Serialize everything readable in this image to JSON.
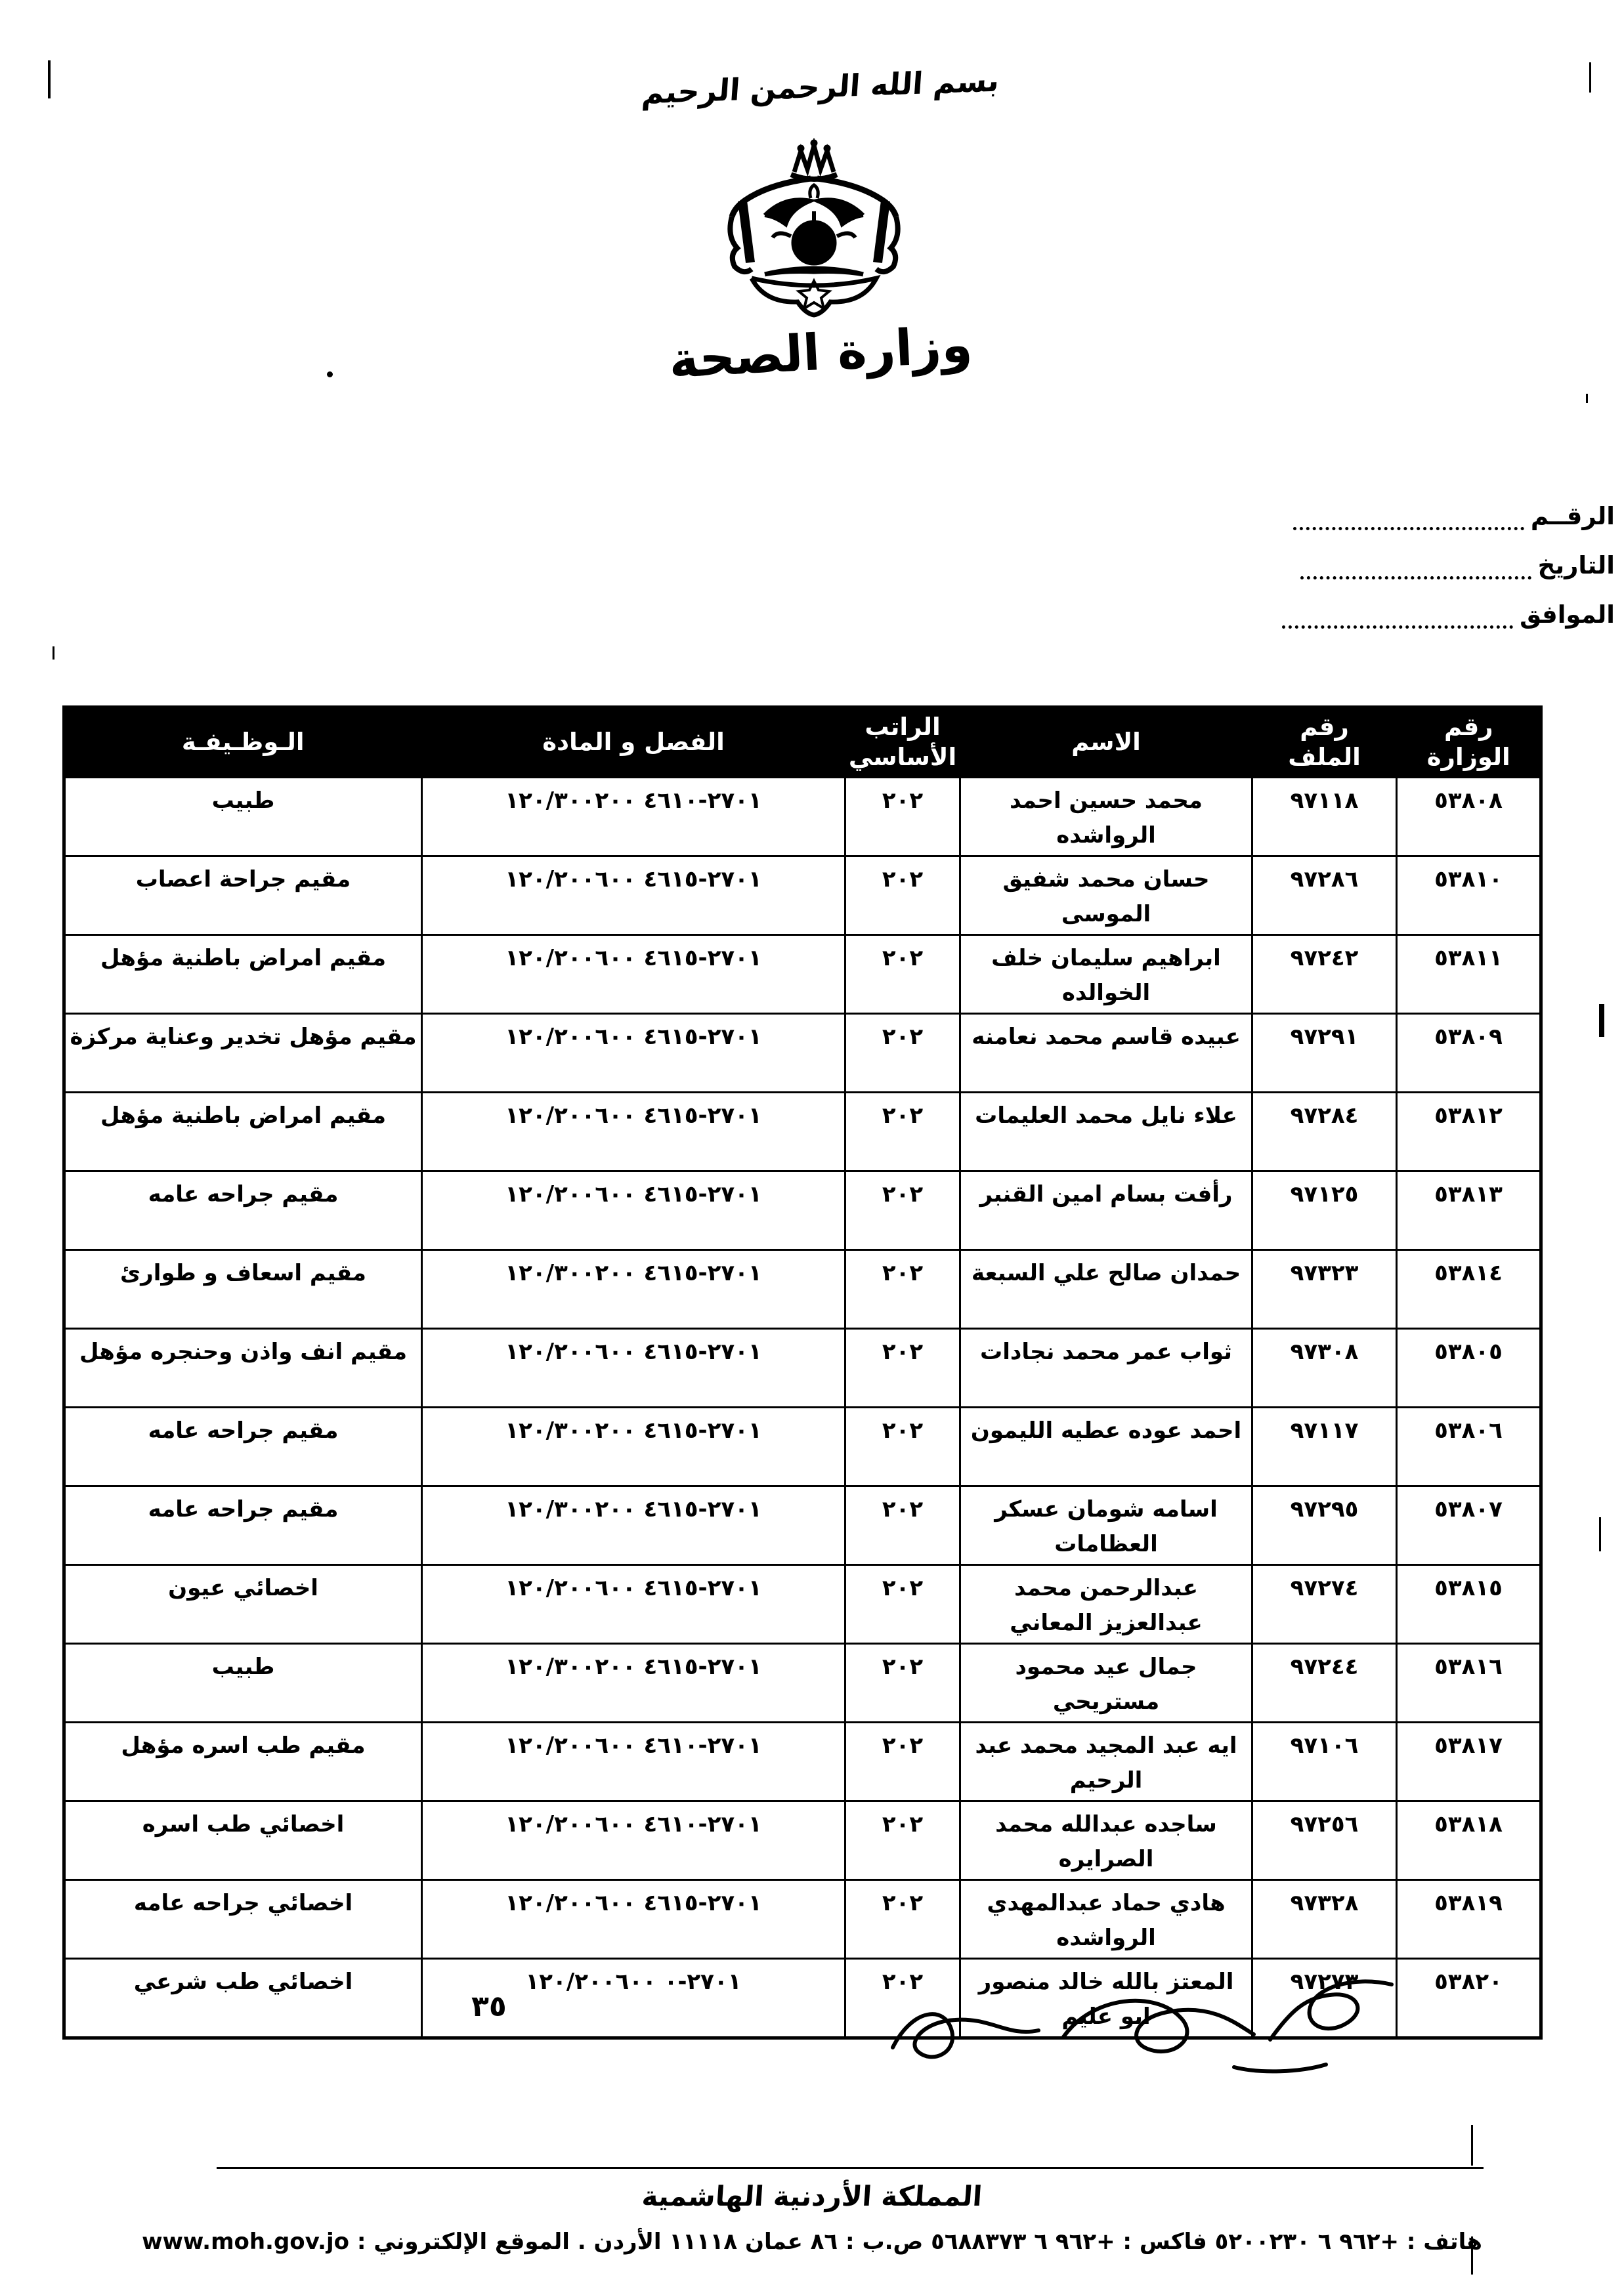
{
  "header": {
    "bismillah": "بسم الله الرحمن الرحيم",
    "ministry": "وزارة الصحة"
  },
  "meta": {
    "number_label": "الرقــم",
    "date_label": "التاريخ",
    "agreed_label": "الموافق"
  },
  "table": {
    "headers": {
      "ministry_number": "رقم\nالوزارة",
      "file_number": "رقم\nالملف",
      "name": "الاسم",
      "basic_salary": "الراتب\nالأساسي",
      "chapter_article": "الفصل و المادة",
      "job_title": "الـوظـيفـة"
    },
    "rows": [
      {
        "serial": "٥٣٨٠٨",
        "file": "٩٧١١٨",
        "name": "محمد حسين احمد الرواشده",
        "salary": "٢٠٢",
        "code": "١٢٠/٣٠٠٢٠٠  ٤٦١٠-٢٧٠١",
        "title": "طبيب"
      },
      {
        "serial": "٥٣٨١٠",
        "file": "٩٧٢٨٦",
        "name": "حسان محمد شفيق الموسى",
        "salary": "٢٠٢",
        "code": "١٢٠/٢٠٠٦٠٠  ٤٦١٥-٢٧٠١",
        "title": "مقيم جراحة اعصاب"
      },
      {
        "serial": "٥٣٨١١",
        "file": "٩٧٢٤٢",
        "name": "ابراهيم سليمان خلف الخوالده",
        "salary": "٢٠٢",
        "code": "١٢٠/٢٠٠٦٠٠  ٤٦١٥-٢٧٠١",
        "title": "مقيم امراض باطنية مؤهل"
      },
      {
        "serial": "٥٣٨٠٩",
        "file": "٩٧٢٩١",
        "name": "عبيده قاسم محمد نعامنه",
        "salary": "٢٠٢",
        "code": "١٢٠/٢٠٠٦٠٠  ٤٦١٥-٢٧٠١",
        "title": "مقيم مؤهل تخدير وعناية مركزة"
      },
      {
        "serial": "٥٣٨١٢",
        "file": "٩٧٢٨٤",
        "name": "علاء نايل محمد العليمات",
        "salary": "٢٠٢",
        "code": "١٢٠/٢٠٠٦٠٠  ٤٦١٥-٢٧٠١",
        "title": "مقيم امراض باطنية مؤهل"
      },
      {
        "serial": "٥٣٨١٣",
        "file": "٩٧١٢٥",
        "name": "رأفت بسام امين القنبر",
        "salary": "٢٠٢",
        "code": "١٢٠/٢٠٠٦٠٠  ٤٦١٥-٢٧٠١",
        "title": "مقيم جراحه عامه"
      },
      {
        "serial": "٥٣٨١٤",
        "file": "٩٧٣٢٣",
        "name": "حمدان صالح علي السبعة",
        "salary": "٢٠٢",
        "code": "١٢٠/٣٠٠٢٠٠  ٤٦١٥-٢٧٠١",
        "title": "مقيم اسعاف و طوارئ"
      },
      {
        "serial": "٥٣٨٠٥",
        "file": "٩٧٣٠٨",
        "name": "ثواب عمر محمد نجادات",
        "salary": "٢٠٢",
        "code": "١٢٠/٢٠٠٦٠٠  ٤٦١٥-٢٧٠١",
        "title": "مقيم انف واذن وحنجره مؤهل"
      },
      {
        "serial": "٥٣٨٠٦",
        "file": "٩٧١١٧",
        "name": "احمد عوده عطيه الليمون",
        "salary": "٢٠٢",
        "code": "١٢٠/٣٠٠٢٠٠  ٤٦١٥-٢٧٠١",
        "title": "مقيم جراحه عامه"
      },
      {
        "serial": "٥٣٨٠٧",
        "file": "٩٧٢٩٥",
        "name": "اسامه شومان عسكر العظامات",
        "salary": "٢٠٢",
        "code": "١٢٠/٣٠٠٢٠٠  ٤٦١٥-٢٧٠١",
        "title": "مقيم جراحه عامه"
      },
      {
        "serial": "٥٣٨١٥",
        "file": "٩٧٢٧٤",
        "name": "عبدالرحمن محمد عبدالعزيز المعاني",
        "salary": "٢٠٢",
        "code": "١٢٠/٢٠٠٦٠٠  ٤٦١٥-٢٧٠١",
        "title": "اخصائي عيون"
      },
      {
        "serial": "٥٣٨١٦",
        "file": "٩٧٢٤٤",
        "name": "جمال عيد محمود مستريحي",
        "salary": "٢٠٢",
        "code": "١٢٠/٣٠٠٢٠٠  ٤٦١٥-٢٧٠١",
        "title": "طبيب"
      },
      {
        "serial": "٥٣٨١٧",
        "file": "٩٧١٠٦",
        "name": "ايه عبد المجيد محمد عبد الرحيم",
        "salary": "٢٠٢",
        "code": "١٢٠/٢٠٠٦٠٠  ٤٦١٠-٢٧٠١",
        "title": "مقيم طب اسره مؤهل"
      },
      {
        "serial": "٥٣٨١٨",
        "file": "٩٧٢٥٦",
        "name": "ساجده عبدالله محمد الصرايره",
        "salary": "٢٠٢",
        "code": "١٢٠/٢٠٠٦٠٠  ٤٦١٠-٢٧٠١",
        "title": "اخصائي طب اسره"
      },
      {
        "serial": "٥٣٨١٩",
        "file": "٩٧٣٢٨",
        "name": "هادي حماد عبدالمهدي الرواشده",
        "salary": "٢٠٢",
        "code": "١٢٠/٢٠٠٦٠٠  ٤٦١٥-٢٧٠١",
        "title": "اخصائي جراحه عامه"
      },
      {
        "serial": "٥٣٨٢٠",
        "file": "٩٧٢٧٣",
        "name": "المعتز بالله خالد منصور ابو عليم",
        "salary": "٢٠٢",
        "code": "١٢٠/٢٠٠٦٠٠  ٠-٢٧٠١",
        "title": "اخصائي طب شرعي"
      }
    ]
  },
  "footer": {
    "page_number": "٣٥",
    "kingdom": "المملكة الأردنية الهاشمية",
    "contact": "هاتف : +٩٦٢ ٦ ٥٢٠٠٢٣٠   فاكس : +٩٦٢ ٦ ٥٦٨٨٣٧٣   ص.ب : ٨٦ عمان ١١١١٨ الأردن . الموقع الإلكتروني : www.moh.gov.jo"
  },
  "colors": {
    "ink": "#000000",
    "paper": "#ffffff",
    "header_bg": "#000000",
    "header_text": "#ffffff"
  }
}
